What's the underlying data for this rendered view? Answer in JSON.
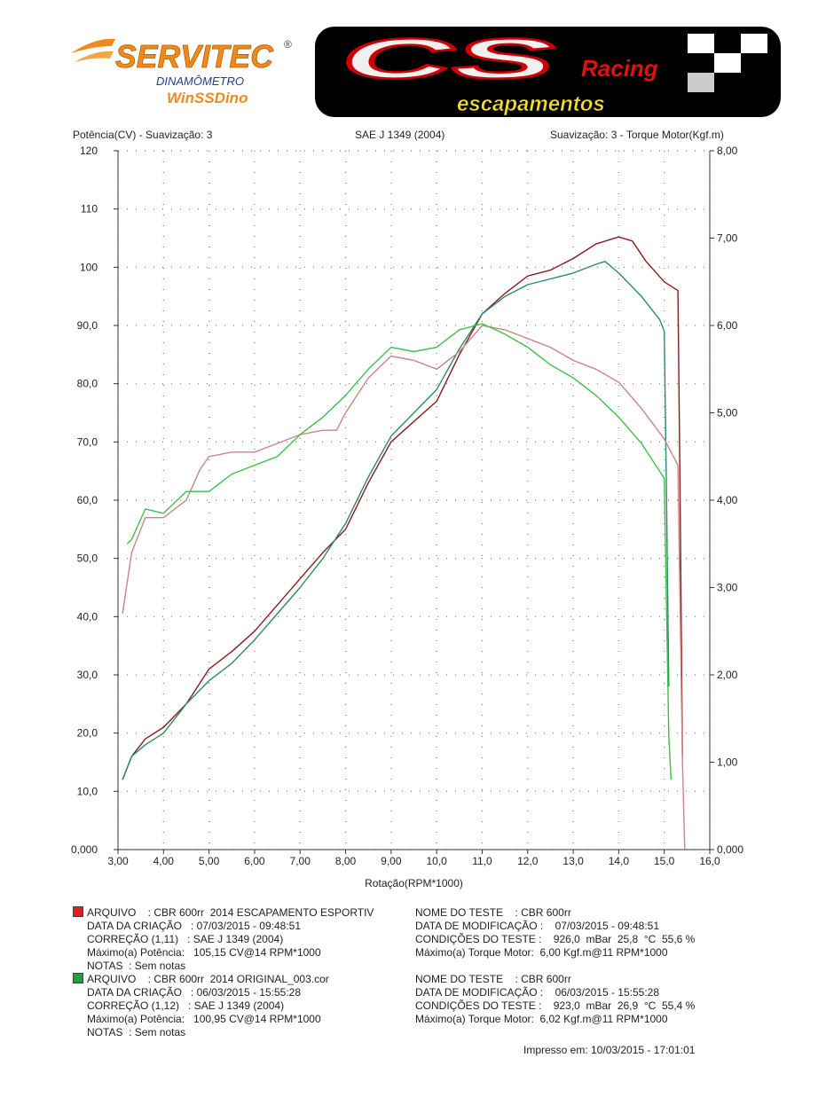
{
  "logos": {
    "servitec": {
      "brand": "SERVITEC",
      "sub1": "DINAMÔMETRO",
      "sub2": "WinSSDino",
      "color": "#f08a1c"
    },
    "cs": {
      "brand": "CS",
      "script": "Racing",
      "sub": "escapamentos"
    }
  },
  "header": {
    "left": "Potência(CV) - Suavização: 3",
    "center": "SAE J 1349 (2004)",
    "right": "Suavização: 3 - Torque Motor(Kgf.m)"
  },
  "chart_data": {
    "type": "line",
    "xlabel": "Rotação(RPM*1000)",
    "xlim": [
      3,
      16
    ],
    "ylim_left": [
      0,
      120
    ],
    "ylim_right": [
      0,
      8
    ],
    "grid": true,
    "x_ticks": [
      "3,00",
      "4,00",
      "5,00",
      "6,00",
      "7,00",
      "8,00",
      "9,00",
      "10,0",
      "11,0",
      "12,0",
      "13,0",
      "14,0",
      "15,0",
      "16,0"
    ],
    "y_left_ticks": [
      "0,000",
      "10,0",
      "20,0",
      "30,0",
      "40,0",
      "50,0",
      "60,0",
      "70,0",
      "80,0",
      "90,0",
      "100",
      "110",
      "120"
    ],
    "y_right_ticks": [
      "0,000",
      "1,00",
      "2,00",
      "3,00",
      "4,00",
      "5,00",
      "6,00",
      "7,00",
      "8,00"
    ],
    "series": [
      {
        "axis": "left",
        "color": "#8b1c1c",
        "x": [
          3.1,
          3.3,
          3.6,
          4.0,
          4.5,
          5.0,
          5.5,
          6.0,
          6.5,
          7.0,
          7.5,
          8.0,
          8.5,
          9.0,
          9.5,
          10.0,
          10.5,
          11.0,
          11.5,
          12.0,
          12.5,
          13.0,
          13.5,
          14.0,
          14.3,
          14.6,
          15.0,
          15.3,
          15.35,
          15.4
        ],
        "y": [
          12,
          16,
          19,
          21,
          25,
          31,
          34,
          37.5,
          42,
          46.5,
          51,
          55,
          63,
          70,
          73.5,
          77,
          85,
          92,
          95.5,
          98.5,
          99.5,
          101.5,
          104,
          105.2,
          104.5,
          101,
          97.5,
          96,
          60,
          16
        ]
      },
      {
        "axis": "left",
        "color": "#2e8b63",
        "x": [
          3.1,
          3.3,
          3.6,
          4.0,
          4.5,
          5.0,
          5.5,
          6.0,
          6.5,
          7.0,
          7.5,
          8.0,
          8.5,
          9.0,
          9.5,
          10.0,
          10.5,
          11.0,
          11.5,
          12.0,
          12.5,
          13.0,
          13.5,
          13.7,
          14.0,
          14.5,
          14.9,
          15.0,
          15.05,
          15.1
        ],
        "y": [
          12,
          16,
          18,
          20,
          25,
          29,
          32,
          36,
          40.5,
          45,
          50,
          56,
          64,
          71,
          75,
          79,
          86,
          92,
          95,
          97,
          98,
          99,
          100.5,
          101,
          99,
          95,
          91,
          89,
          60,
          28
        ]
      },
      {
        "axis": "right",
        "color": "#c98585",
        "x": [
          3.1,
          3.3,
          3.6,
          4.0,
          4.5,
          4.8,
          5.0,
          5.5,
          6.0,
          6.5,
          7.0,
          7.5,
          7.8,
          8.0,
          8.5,
          9.0,
          9.5,
          10.0,
          10.5,
          11.0,
          11.5,
          12.0,
          12.5,
          13.0,
          13.5,
          14.0,
          14.5,
          15.0,
          15.3,
          15.4,
          15.45
        ],
        "y": [
          2.7,
          3.4,
          3.8,
          3.8,
          4.0,
          4.35,
          4.5,
          4.55,
          4.55,
          4.65,
          4.75,
          4.8,
          4.8,
          5.0,
          5.4,
          5.65,
          5.6,
          5.5,
          5.7,
          6.0,
          5.95,
          5.85,
          5.75,
          5.6,
          5.5,
          5.35,
          5.05,
          4.7,
          4.4,
          1.0,
          0
        ]
      },
      {
        "axis": "right",
        "color": "#3cc04a",
        "x": [
          3.2,
          3.3,
          3.6,
          4.0,
          4.5,
          5.0,
          5.5,
          6.0,
          6.5,
          7.0,
          7.5,
          8.0,
          8.5,
          9.0,
          9.5,
          10.0,
          10.5,
          11.0,
          11.5,
          12.0,
          12.5,
          13.0,
          13.5,
          14.0,
          14.5,
          15.0,
          15.1,
          15.15
        ],
        "y": [
          3.5,
          3.55,
          3.9,
          3.85,
          4.1,
          4.1,
          4.3,
          4.4,
          4.5,
          4.75,
          4.95,
          5.2,
          5.5,
          5.75,
          5.7,
          5.75,
          5.95,
          6.02,
          5.9,
          5.75,
          5.55,
          5.4,
          5.2,
          4.95,
          4.65,
          4.25,
          1.3,
          0.8
        ]
      }
    ]
  },
  "runs": [
    {
      "color": "#e02020",
      "left": [
        "ARQUIVO    : CBR 600rr  2014 ESCAPAMENTO ESPORTIV",
        "DATA DA CRIAÇÃO   : 07/03/2015 - 09:48:51",
        "CORREÇÃO (1,11)   : SAE J 1349 (2004)",
        "Máximo(a) Potência:   105,15 CV@14 RPM*1000",
        "NOTAS  : Sem notas"
      ],
      "right": [
        "NOME DO TESTE    : CBR 600rr",
        "DATA DE MODIFICAÇÃO :    07/03/2015 - 09:48:51",
        "CONDIÇÕES DO TESTE :    926,0  mBar  25,8  °C  55,6 %",
        "Máximo(a) Torque Motor:  6,00 Kgf.m@11 RPM*1000"
      ]
    },
    {
      "color": "#20a040",
      "left": [
        "ARQUIVO    : CBR 600rr  2014 ORIGINAL_003.cor",
        "DATA DA CRIAÇÃO   : 06/03/2015 - 15:55:28",
        "CORREÇÃO (1,12)   : SAE J 1349 (2004)",
        "Máximo(a) Potência:   100,95 CV@14 RPM*1000",
        "NOTAS  : Sem notas"
      ],
      "right": [
        "NOME DO TESTE    : CBR 600rr",
        "DATA DE MODIFICAÇÃO :    06/03/2015 - 15:55:28",
        "CONDIÇÕES DO TESTE :    923,0  mBar  26,9  °C  55,4 %",
        "Máximo(a) Torque Motor:  6,02 Kgf.m@11 RPM*1000"
      ]
    }
  ],
  "footer": {
    "printed": "Impresso em: 10/03/2015 - 17:01:01"
  }
}
